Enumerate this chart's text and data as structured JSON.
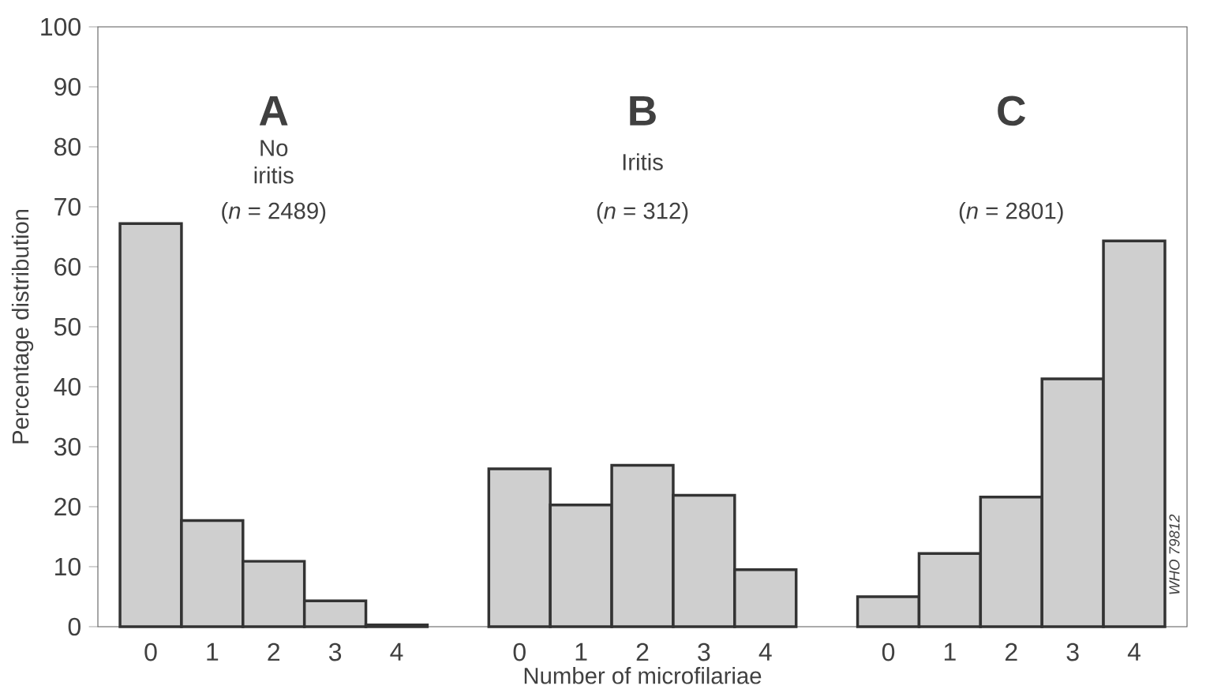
{
  "chart_data": {
    "type": "bar",
    "xlabel": "Number of microfilariae",
    "ylabel": "Percentage distribution",
    "categories": [
      "0",
      "1",
      "2",
      "3",
      "4",
      null,
      "0",
      "1",
      "2",
      "3",
      "4",
      null,
      "0",
      "1",
      "2",
      "3",
      "4"
    ],
    "values": [
      67.2,
      17.7,
      10.9,
      4.3,
      0.3,
      null,
      26.3,
      20.3,
      26.9,
      21.9,
      9.5,
      null,
      5,
      12.2,
      21.6,
      41.3,
      64.3
    ],
    "color": "#cfcfcf",
    "ylim": [
      0,
      100
    ],
    "yticks": [
      0,
      10,
      20,
      30,
      40,
      50,
      60,
      70,
      80,
      90,
      100
    ],
    "grid": false,
    "annotations": [
      "A",
      "No iritis",
      "(*n* = 2489)",
      "B",
      "Iritis",
      "(*n* = 312)",
      "C",
      "(*n* = 2801)",
      "WHO 79812"
    ]
  }
}
